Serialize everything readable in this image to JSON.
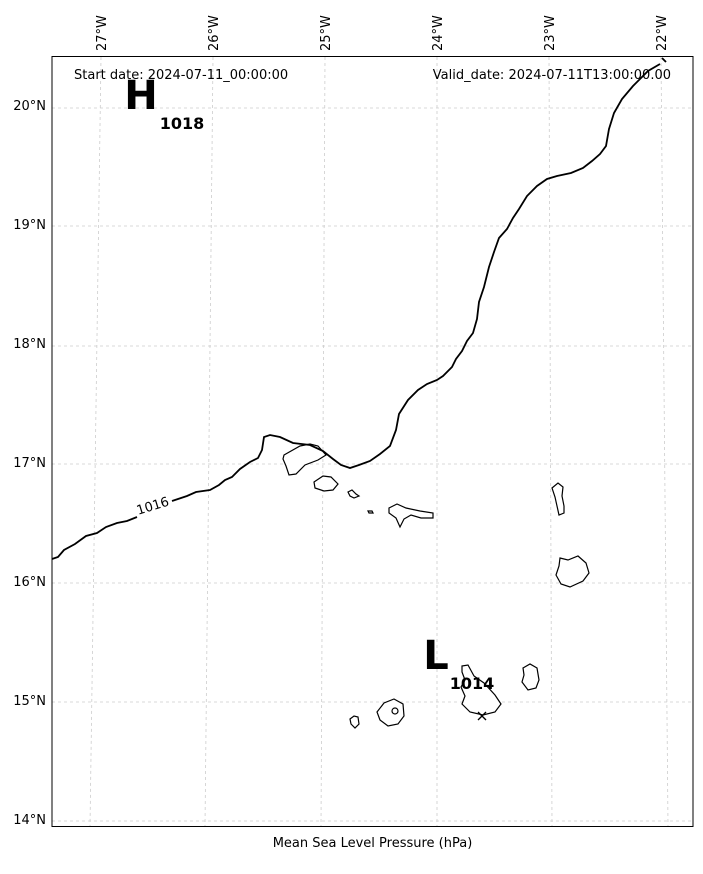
{
  "header": {
    "start_date": "Start date: 2024-07-11_00:00:00",
    "valid_date": "Valid_date: 2024-07-11T13:00:00.00"
  },
  "x_axis": {
    "ticks": [
      {
        "value": -27,
        "label": "27°W"
      },
      {
        "value": -26,
        "label": "26°W"
      },
      {
        "value": -25,
        "label": "25°W"
      },
      {
        "value": -24,
        "label": "24°W"
      },
      {
        "value": -23,
        "label": "23°W"
      },
      {
        "value": -22,
        "label": "22°W"
      }
    ]
  },
  "y_axis": {
    "ticks": [
      {
        "value": 20,
        "label": "20°N"
      },
      {
        "value": 19,
        "label": "19°N"
      },
      {
        "value": 18,
        "label": "18°N"
      },
      {
        "value": 17,
        "label": "17°N"
      },
      {
        "value": 16,
        "label": "16°N"
      },
      {
        "value": 15,
        "label": "15°N"
      },
      {
        "value": 14,
        "label": "14°N"
      }
    ]
  },
  "isobars": [
    {
      "value": 1016,
      "label": "1016"
    }
  ],
  "pressure_centers": [
    {
      "type": "H",
      "letter": "H",
      "value": "1018"
    },
    {
      "type": "L",
      "letter": "L",
      "value": "1014"
    }
  ],
  "caption": "Mean Sea Level Pressure (hPa)",
  "style": {
    "line_color": "#000000",
    "grid_color": "#cccccc"
  }
}
